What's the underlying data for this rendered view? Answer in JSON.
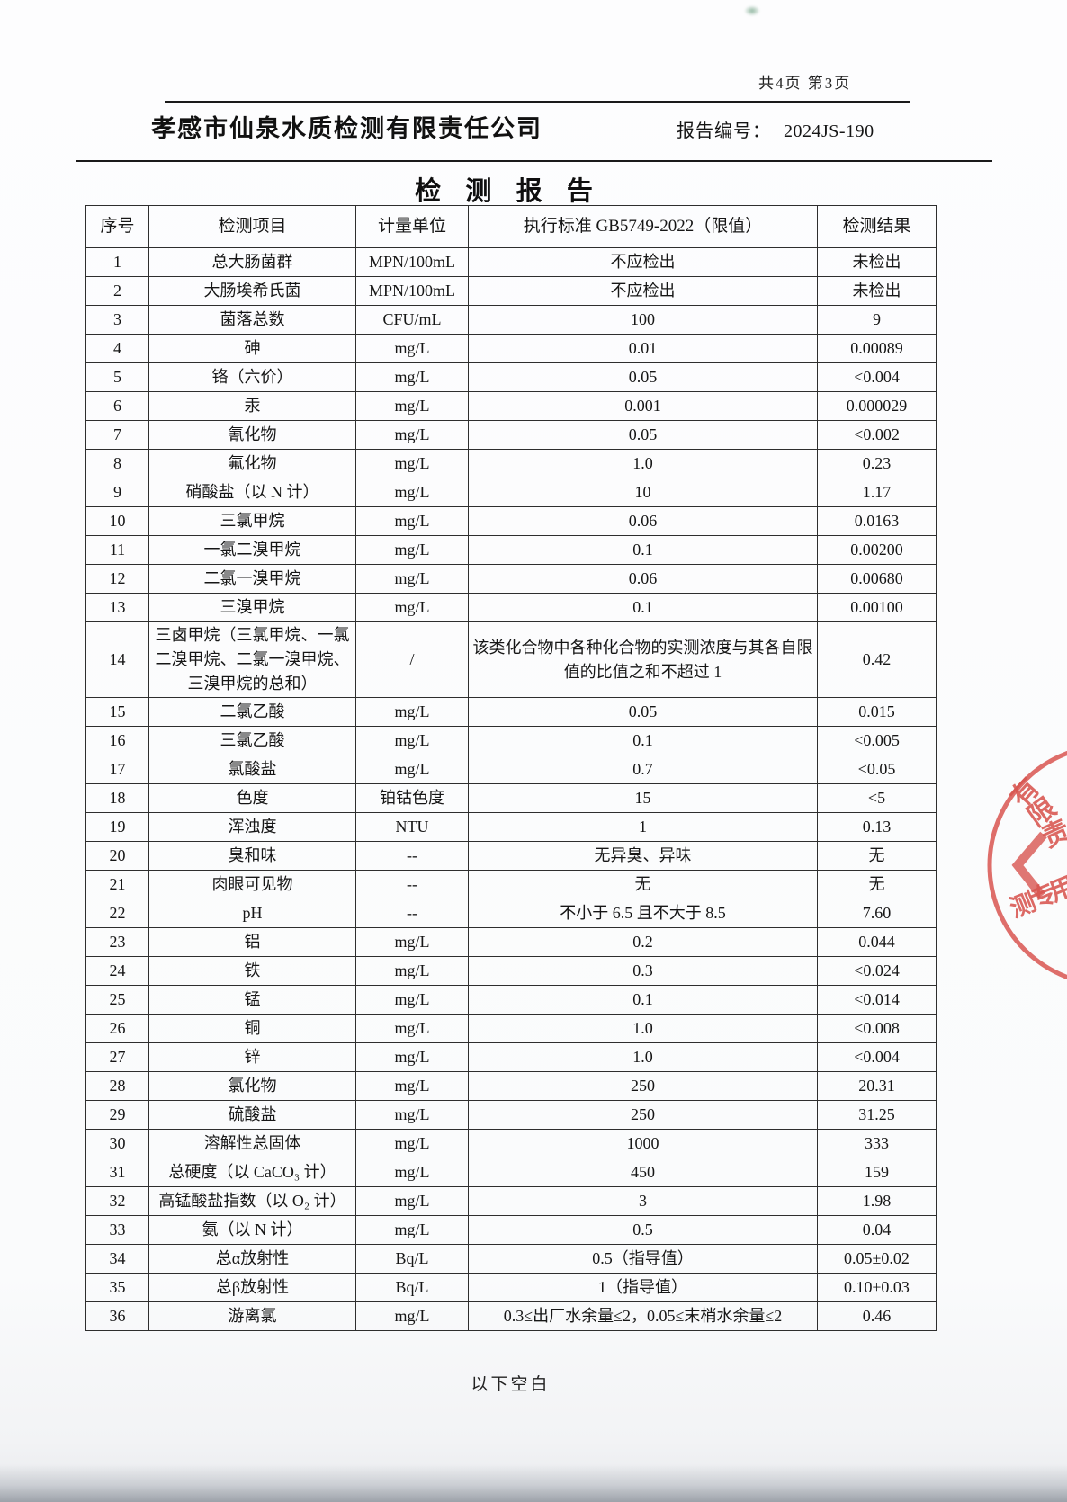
{
  "page": {
    "page_info": "共4页 第3页",
    "company": "孝感市仙泉水质检测有限责任公司",
    "report_no_label": "报告编号：",
    "report_no": "2024JS-190",
    "title": "检  测  报  告",
    "blank_note": "以下空白"
  },
  "table": {
    "headers": [
      "序号",
      "检测项目",
      "计量单位",
      "执行标准 GB5749-2022（限值）",
      "检测结果"
    ],
    "rows": [
      [
        "1",
        "总大肠菌群",
        "MPN/100mL",
        "不应检出",
        "未检出"
      ],
      [
        "2",
        "大肠埃希氏菌",
        "MPN/100mL",
        "不应检出",
        "未检出"
      ],
      [
        "3",
        "菌落总数",
        "CFU/mL",
        "100",
        "9"
      ],
      [
        "4",
        "砷",
        "mg/L",
        "0.01",
        "0.00089"
      ],
      [
        "5",
        "铬（六价）",
        "mg/L",
        "0.05",
        "<0.004"
      ],
      [
        "6",
        "汞",
        "mg/L",
        "0.001",
        "0.000029"
      ],
      [
        "7",
        "氰化物",
        "mg/L",
        "0.05",
        "<0.002"
      ],
      [
        "8",
        "氟化物",
        "mg/L",
        "1.0",
        "0.23"
      ],
      [
        "9",
        "硝酸盐（以 N 计）",
        "mg/L",
        "10",
        "1.17"
      ],
      [
        "10",
        "三氯甲烷",
        "mg/L",
        "0.06",
        "0.0163"
      ],
      [
        "11",
        "一氯二溴甲烷",
        "mg/L",
        "0.1",
        "0.00200"
      ],
      [
        "12",
        "二氯一溴甲烷",
        "mg/L",
        "0.06",
        "0.00680"
      ],
      [
        "13",
        "三溴甲烷",
        "mg/L",
        "0.1",
        "0.00100"
      ],
      [
        "14",
        "三卤甲烷（三氯甲烷、一氯二溴甲烷、二氯一溴甲烷、三溴甲烷的总和）",
        "/",
        "该类化合物中各种化合物的实测浓度与其各自限值的比值之和不超过 1",
        "0.42"
      ],
      [
        "15",
        "二氯乙酸",
        "mg/L",
        "0.05",
        "0.015"
      ],
      [
        "16",
        "三氯乙酸",
        "mg/L",
        "0.1",
        "<0.005"
      ],
      [
        "17",
        "氯酸盐",
        "mg/L",
        "0.7",
        "<0.05"
      ],
      [
        "18",
        "色度",
        "铂钴色度",
        "15",
        "<5"
      ],
      [
        "19",
        "浑浊度",
        "NTU",
        "1",
        "0.13"
      ],
      [
        "20",
        "臭和味",
        "--",
        "无异臭、异味",
        "无"
      ],
      [
        "21",
        "肉眼可见物",
        "--",
        "无",
        "无"
      ],
      [
        "22",
        "pH",
        "--",
        "不小于 6.5 且不大于 8.5",
        "7.60"
      ],
      [
        "23",
        "铝",
        "mg/L",
        "0.2",
        "0.044"
      ],
      [
        "24",
        "铁",
        "mg/L",
        "0.3",
        "<0.024"
      ],
      [
        "25",
        "锰",
        "mg/L",
        "0.1",
        "<0.014"
      ],
      [
        "26",
        "铜",
        "mg/L",
        "1.0",
        "<0.008"
      ],
      [
        "27",
        "锌",
        "mg/L",
        "1.0",
        "<0.004"
      ],
      [
        "28",
        "氯化物",
        "mg/L",
        "250",
        "20.31"
      ],
      [
        "29",
        "硫酸盐",
        "mg/L",
        "250",
        "31.25"
      ],
      [
        "30",
        "溶解性总固体",
        "mg/L",
        "1000",
        "333"
      ],
      [
        "31",
        "总硬度（以 CaCO₃ 计）",
        "mg/L",
        "450",
        "159"
      ],
      [
        "32",
        "高锰酸盐指数（以 O₂ 计）",
        "mg/L",
        "3",
        "1.98"
      ],
      [
        "33",
        "氨（以 N 计）",
        "mg/L",
        "0.5",
        "0.04"
      ],
      [
        "34",
        "总α放射性",
        "Bq/L",
        "0.5（指导值）",
        "0.05±0.02"
      ],
      [
        "35",
        "总β放射性",
        "Bq/L",
        "1（指导值）",
        "0.10±0.03"
      ],
      [
        "36",
        "游离氯",
        "mg/L",
        "0.3≤出厂水余量≤2，0.05≤末梢水余量≤2",
        "0.46"
      ]
    ]
  },
  "stamp": {
    "color": "#d85550",
    "arc_chars": [
      "有",
      "限",
      "责"
    ],
    "line_chars": [
      "测",
      "专",
      "用"
    ]
  }
}
